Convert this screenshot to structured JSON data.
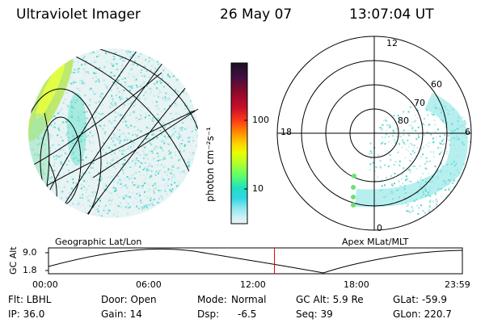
{
  "header": {
    "title": "Ultraviolet Imager",
    "date": "26 May 07",
    "time": "13:07:04 UT"
  },
  "colorbar": {
    "unit_label": "photon cm⁻²s⁻¹",
    "ticks": [
      "100",
      "10"
    ],
    "colors": [
      "#1b0f1f",
      "#3b1040",
      "#8a0a2a",
      "#c8102a",
      "#ff3b1a",
      "#ff8a00",
      "#ffd000",
      "#e6ff00",
      "#b6ff2a",
      "#5fff6a",
      "#1fe0c0",
      "#2fd6e6",
      "#8ae6f0",
      "#cfeff4",
      "#e8f5f8"
    ]
  },
  "panels": {
    "left_label": "Geographic Lat/Lon",
    "right_label": "Apex MLat/MLT"
  },
  "polar": {
    "mlt_labels": [
      "12",
      "18",
      "6",
      "0"
    ],
    "lat_labels": [
      "60",
      "70",
      "80"
    ]
  },
  "altitude_plot": {
    "ylabel": "GC Alt",
    "y_ticks": [
      "9.0",
      "1.8"
    ],
    "x_ticks": [
      "00:00",
      "06:00",
      "12:00",
      "18:00",
      "23:59"
    ],
    "marker_time_fraction": 0.546
  },
  "status": {
    "flt": "Flt: LBHL",
    "door": "Door: Open",
    "mode_label": "Mode:",
    "mode_value": "Normal",
    "gc_alt": "GC Alt: 5.9 Re",
    "glat": "GLat: -59.9",
    "ip": "IP: 36.0",
    "gain": "Gain: 14",
    "dsp_label": "Dsp:",
    "dsp_value": "-6.5",
    "seq": "Seq: 39",
    "glon": "GLon: 220.7"
  }
}
